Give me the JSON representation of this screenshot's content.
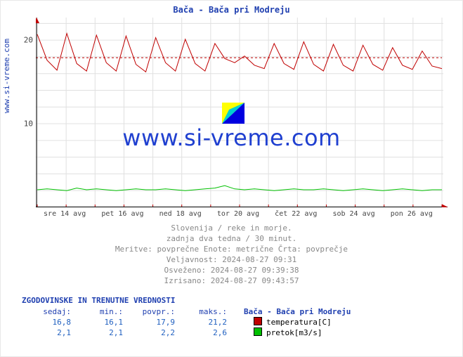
{
  "chart": {
    "title": "Bača - Bača pri Modreju",
    "ylabel_site": "www.si-vreme.com",
    "ylim": [
      0,
      22.7
    ],
    "yticks": [
      10,
      20
    ],
    "xlabels": [
      "sre 14 avg",
      "pet 16 avg",
      "ned 18 avg",
      "tor 20 avg",
      "čet 22 avg",
      "sob 24 avg",
      "pon 26 avg"
    ],
    "x_days_total": 14,
    "xlabel_day_positions": [
      1,
      3,
      5,
      7,
      9,
      11,
      13
    ],
    "grid_color": "#e0e0e0",
    "background": "#ffffff",
    "axis_color": "#000000",
    "arrow_color": "#c00000",
    "ref_line_color": "#c00000",
    "ref_line_value": 17.9,
    "series": {
      "temperature": {
        "color": "#c00000",
        "label": "temperatura[C]",
        "values": [
          20.7,
          17.6,
          16.4,
          20.8,
          17.2,
          16.3,
          20.6,
          17.3,
          16.3,
          20.5,
          17.1,
          16.2,
          20.3,
          17.3,
          16.3,
          20.1,
          17.2,
          16.3,
          19.6,
          17.8,
          17.3,
          18.1,
          17.0,
          16.6,
          19.6,
          17.2,
          16.5,
          19.8,
          17.1,
          16.3,
          19.5,
          17.0,
          16.3,
          19.4,
          17.1,
          16.4,
          19.1,
          17.0,
          16.5,
          18.7,
          16.9,
          16.6
        ]
      },
      "flow": {
        "color": "#00c000",
        "label": "pretok[m3/s]",
        "values": [
          2.1,
          2.2,
          2.1,
          2.0,
          2.3,
          2.1,
          2.2,
          2.1,
          2.0,
          2.1,
          2.2,
          2.1,
          2.1,
          2.2,
          2.1,
          2.0,
          2.1,
          2.2,
          2.3,
          2.6,
          2.2,
          2.1,
          2.2,
          2.1,
          2.0,
          2.1,
          2.2,
          2.1,
          2.1,
          2.2,
          2.1,
          2.0,
          2.1,
          2.2,
          2.1,
          2.0,
          2.1,
          2.2,
          2.1,
          2.0,
          2.1,
          2.1
        ]
      }
    },
    "watermark": {
      "text": "www.si-vreme.com",
      "text_color": "#2040d0",
      "logo_colors": {
        "top_left": "#ffff00",
        "bottom_right": "#0000e0",
        "mid": "#00c0d0"
      }
    }
  },
  "metadata": {
    "line1": "Slovenija / reke in morje.",
    "line2": "zadnja dva tedna / 30 minut.",
    "line3": "Meritve: povprečne  Enote: metrične  Črta: povprečje",
    "line4": "Veljavnost: 2024-08-27 09:31",
    "line5": "Osveženo: 2024-08-27 09:39:38",
    "line6": "Izrisano: 2024-08-27 09:43:57"
  },
  "stats": {
    "title": "ZGODOVINSKE IN TRENUTNE VREDNOSTI",
    "columns": [
      "sedaj:",
      "min.:",
      "povpr.:",
      "maks.:"
    ],
    "station": "Bača - Bača pri Modreju",
    "rows": [
      {
        "values": [
          "16,8",
          "16,1",
          "17,9",
          "21,2"
        ],
        "swatch": "#c00000",
        "label": "temperatura[C]"
      },
      {
        "values": [
          "2,1",
          "2,1",
          "2,2",
          "2,6"
        ],
        "swatch": "#00c000",
        "label": "pretok[m3/s]"
      }
    ]
  }
}
